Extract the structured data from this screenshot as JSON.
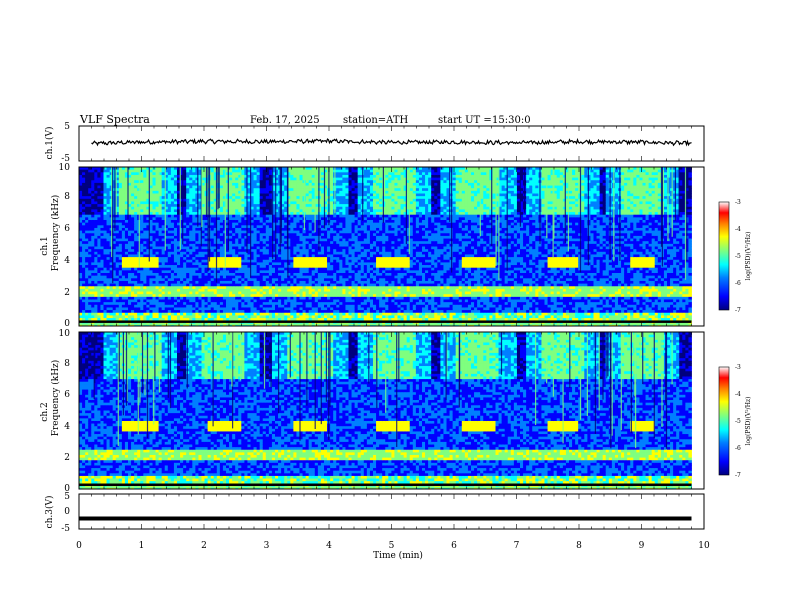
{
  "header": {
    "title": "VLF  Spectra",
    "date": "Feb. 17, 2025",
    "station": "station=ATH",
    "start_label": "start  UT  =",
    "start_time": "15:30:0"
  },
  "panels": {
    "ch1_waveform": {
      "ylabel": "ch.1(V)",
      "yticks": [
        "5",
        "-5"
      ]
    },
    "ch1_spectrogram": {
      "ylabel_ch": "ch.1",
      "ylabel": "Frequency  (kHz)",
      "yticks": [
        "0",
        "2",
        "4",
        "6",
        "8",
        "10"
      ]
    },
    "ch2_spectrogram": {
      "ylabel_ch": "ch.2",
      "ylabel": "Frequency  (kHz)",
      "yticks": [
        "0",
        "2",
        "4",
        "6",
        "8",
        "10"
      ]
    },
    "ch3_waveform": {
      "ylabel": "ch.3(V)",
      "yticks": [
        "5",
        "0",
        "-5"
      ]
    }
  },
  "xaxis": {
    "label": "Time  (min)",
    "ticks": [
      "0",
      "1",
      "2",
      "3",
      "4",
      "5",
      "6",
      "7",
      "8",
      "9",
      "10"
    ]
  },
  "colorbar": {
    "label": "log(PSD)(V²/Hz)",
    "ticks": [
      "-3",
      "-4",
      "-5",
      "-6",
      "-7"
    ]
  },
  "colors": {
    "colormap": [
      "#00007f",
      "#0000ff",
      "#007fff",
      "#00ffff",
      "#7fff7f",
      "#ffff00",
      "#ff7f00",
      "#ff0000",
      "#ffffff"
    ]
  },
  "chart_data": [
    {
      "type": "line",
      "name": "ch.1 waveform",
      "xlim": [
        0,
        10
      ],
      "ylim": [
        -5,
        5
      ],
      "x_unit": "min",
      "y_unit": "V",
      "x": [
        0.2,
        1,
        2,
        3,
        4,
        5,
        6,
        7,
        8,
        9,
        9.8
      ],
      "y": [
        0,
        0.4,
        0.6,
        0.5,
        0.7,
        0.3,
        0.4,
        0.2,
        0.5,
        0.4,
        0
      ]
    },
    {
      "type": "heatmap",
      "name": "ch.1 spectrogram",
      "xlim": [
        0,
        10
      ],
      "ylim": [
        0,
        10
      ],
      "x_unit": "min",
      "y_unit": "kHz",
      "zlim": [
        -7,
        -3
      ],
      "data_end_min": 9.8,
      "tone_band_khz": [
        3.6,
        4.4
      ],
      "tone_bursts_min": [
        [
          0.68,
          1.24
        ],
        [
          2.03,
          2.55
        ],
        [
          3.4,
          3.95
        ],
        [
          4.75,
          5.28
        ],
        [
          6.1,
          6.62
        ],
        [
          7.45,
          7.97
        ],
        [
          8.8,
          9.18
        ]
      ],
      "bright_band_khz": [
        1.9,
        2.5
      ],
      "base_band_khz": [
        0,
        0.8
      ]
    },
    {
      "type": "heatmap",
      "name": "ch.2 spectrogram",
      "xlim": [
        0,
        10
      ],
      "ylim": [
        0,
        10
      ],
      "x_unit": "min",
      "y_unit": "kHz",
      "zlim": [
        -7,
        -3
      ],
      "data_end_min": 9.8,
      "tone_band_khz": [
        3.6,
        4.3
      ],
      "tone_bursts_min": [
        [
          0.68,
          1.24
        ],
        [
          2.03,
          2.55
        ],
        [
          3.4,
          3.95
        ],
        [
          4.75,
          5.28
        ],
        [
          6.1,
          6.62
        ],
        [
          7.45,
          7.97
        ],
        [
          8.8,
          9.18
        ]
      ],
      "bright_band_khz": [
        1.8,
        2.5
      ],
      "base_band_khz": [
        0,
        0.8
      ]
    },
    {
      "type": "line",
      "name": "ch.3 waveform",
      "xlim": [
        0,
        10
      ],
      "ylim": [
        -5,
        5
      ],
      "x_unit": "min",
      "y_unit": "V",
      "x": [
        0,
        9.8
      ],
      "y": [
        -2,
        -2
      ]
    }
  ]
}
